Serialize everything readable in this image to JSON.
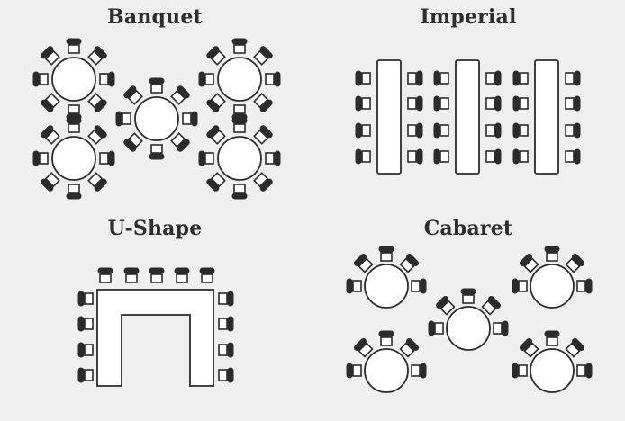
{
  "layouts": [
    {
      "key": "banquet",
      "title": "Banquet"
    },
    {
      "key": "imperial",
      "title": "Imperial"
    },
    {
      "key": "ushape",
      "title": "U-Shape"
    },
    {
      "key": "cabaret",
      "title": "Cabaret"
    }
  ],
  "colors": {
    "background": "#efefef",
    "stroke": "#2b2b2b",
    "table_fill": "#ffffff",
    "chair_back": "#2b2b2b"
  }
}
